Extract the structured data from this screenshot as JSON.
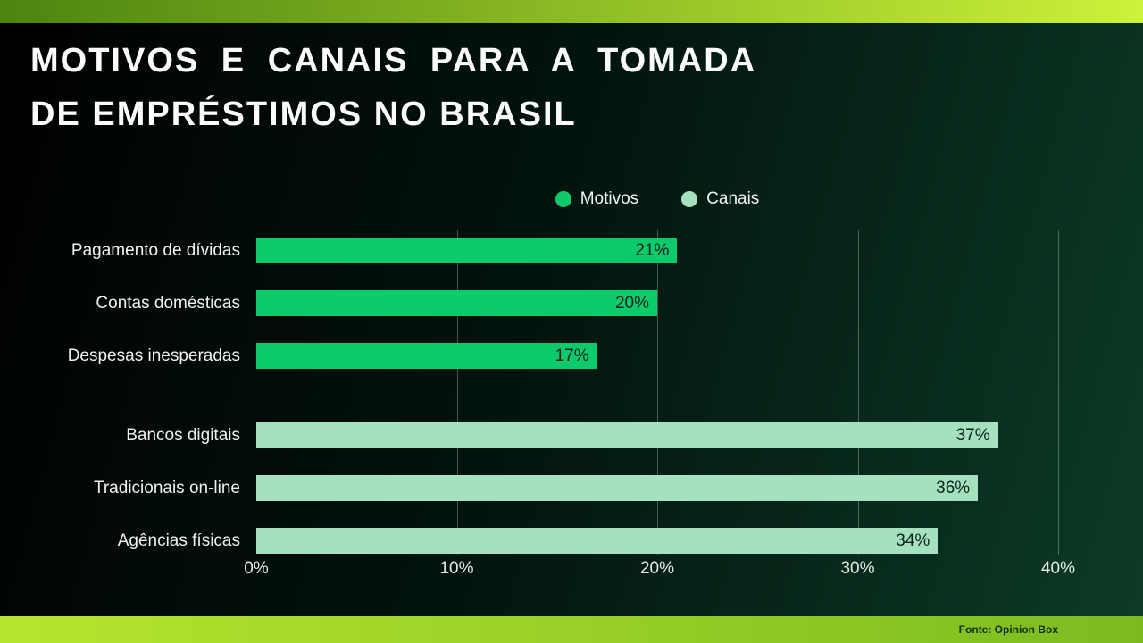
{
  "header": {
    "title_line1": "MOTIVOS E CANAIS PARA A TOMADA",
    "title_line2": "DE EMPRÉSTIMOS NO BRASIL"
  },
  "legend": [
    {
      "label": "Motivos",
      "color": "#0dcb6d"
    },
    {
      "label": "Canais",
      "color": "#a5e0bf"
    }
  ],
  "chart_data": {
    "type": "bar",
    "orientation": "horizontal",
    "title": "Motivos e canais para a tomada de empréstimos no Brasil",
    "categories": [
      "Pagamento de dívidas",
      "Contas domésticas",
      "Despesas inesperadas",
      "Bancos digitais",
      "Tradicionais on-line",
      "Agências físicas"
    ],
    "values": [
      21,
      20,
      17,
      37,
      36,
      34
    ],
    "value_labels": [
      "21%",
      "20%",
      "17%",
      "37%",
      "36%",
      "34%"
    ],
    "series_assignment": [
      "Motivos",
      "Motivos",
      "Motivos",
      "Canais",
      "Canais",
      "Canais"
    ],
    "x_ticks": [
      "0%",
      "10%",
      "20%",
      "30%",
      "40%"
    ],
    "xlim": [
      0,
      40
    ],
    "grid": true,
    "legend_position": "top-center"
  },
  "footer": {
    "source": "Fonte: Opinion Box"
  },
  "colors": {
    "background_left": "#000000",
    "background_right": "#0c3b27",
    "top_strip_left": "#4c8410",
    "top_strip_right": "#cdf23a",
    "bottom_strip_left": "#b5e52f",
    "bottom_strip_right": "#7cbb20",
    "motivos_bar": "#0dcb6d",
    "canais_bar": "#a5e0bf",
    "gridline": "rgba(255,255,255,0.28)",
    "value_text": "#0a241b"
  }
}
